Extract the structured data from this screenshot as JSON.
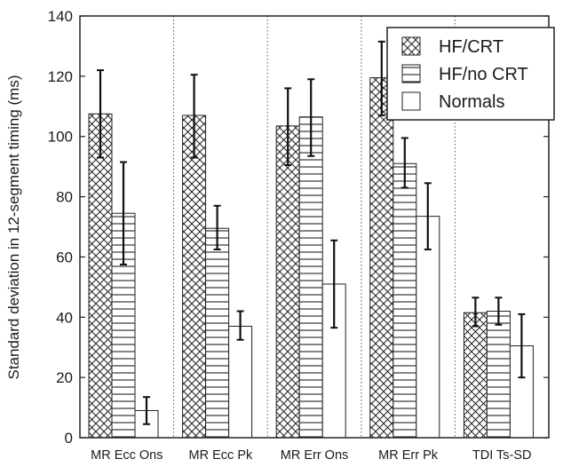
{
  "chart_data": {
    "type": "bar",
    "ylabel": "Standard deviation in 12-segment timing (ms)",
    "xlabel": "",
    "ylim": [
      0,
      140
    ],
    "yticks": [
      0,
      20,
      40,
      60,
      80,
      100,
      120,
      140
    ],
    "grid": "vertical-dotted",
    "legend_position": "top-right",
    "categories": [
      "MR Ecc Ons",
      "MR Ecc Pk",
      "MR Err Ons",
      "MR Err Pk",
      "TDI Ts-SD"
    ],
    "series": [
      {
        "name": "HF/CRT",
        "pattern": "crosshatch",
        "values": [
          107.5,
          107,
          103.5,
          119.5,
          41.5
        ],
        "err_low": [
          93,
          93,
          90.5,
          107,
          37
        ],
        "err_high": [
          122,
          120.5,
          116,
          131.5,
          46.5
        ]
      },
      {
        "name": "HF/no CRT",
        "pattern": "horizontal-lines",
        "values": [
          74.5,
          69.5,
          106.5,
          91,
          42
        ],
        "err_low": [
          57.5,
          62.5,
          93.5,
          83,
          37.5
        ],
        "err_high": [
          91.5,
          77,
          119,
          99.5,
          46.5
        ]
      },
      {
        "name": "Normals",
        "pattern": "none",
        "values": [
          9,
          37,
          51,
          73.5,
          30.5
        ],
        "err_low": [
          4.5,
          32.5,
          36.5,
          62.5,
          20
        ],
        "err_high": [
          13.5,
          42,
          65.5,
          84.5,
          41
        ]
      }
    ]
  }
}
